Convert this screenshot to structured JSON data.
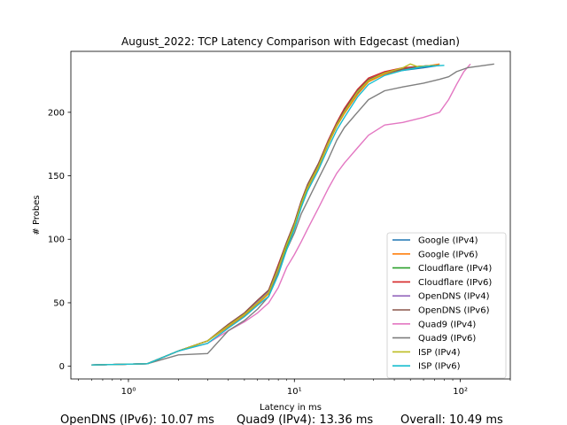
{
  "chart_data": {
    "type": "line",
    "title": "August_2022: TCP Latency Comparison with Edgecast (median)",
    "xlabel": "Latency in ms",
    "ylabel": "# Probes",
    "xscale": "log",
    "xlim": [
      0.45,
      200
    ],
    "ylim": [
      -10,
      248
    ],
    "x_ticks": [
      1,
      10,
      100
    ],
    "x_tick_labels": [
      "10⁰",
      "10¹",
      "10²"
    ],
    "y_ticks": [
      0,
      50,
      100,
      150,
      200
    ],
    "y_tick_labels": [
      "0",
      "50",
      "100",
      "150",
      "200"
    ],
    "grid": false,
    "legend_position": "lower right",
    "series": [
      {
        "name": "Google (IPv4)",
        "color": "#1f77b4",
        "x": [
          0.6,
          1.3,
          2,
          3,
          4,
          5,
          6,
          7,
          8,
          9,
          10,
          11,
          12,
          14,
          16,
          18,
          20,
          24,
          28,
          35,
          45,
          60,
          75
        ],
        "y": [
          1,
          2,
          12,
          20,
          32,
          40,
          50,
          58,
          75,
          95,
          110,
          128,
          140,
          158,
          175,
          190,
          200,
          215,
          225,
          230,
          233,
          235,
          237
        ]
      },
      {
        "name": "Google (IPv6)",
        "color": "#ff7f0e",
        "x": [
          0.62,
          1.3,
          2,
          3,
          4,
          5,
          6,
          7,
          8,
          9,
          10,
          11,
          12,
          14,
          16,
          18,
          20,
          24,
          28,
          35,
          45,
          60,
          75
        ],
        "y": [
          1,
          2,
          12,
          20,
          31,
          40,
          49,
          57,
          74,
          94,
          110,
          127,
          140,
          157,
          175,
          189,
          199,
          214,
          224,
          230,
          234,
          236,
          238
        ]
      },
      {
        "name": "Cloudflare (IPv4)",
        "color": "#2ca02c",
        "x": [
          0.6,
          1.3,
          2,
          3,
          4,
          5,
          6,
          7,
          8,
          9,
          10,
          11,
          12,
          14,
          16,
          18,
          20,
          24,
          28,
          35,
          45,
          55,
          70
        ],
        "y": [
          1,
          2,
          12,
          20,
          32,
          41,
          50,
          58,
          76,
          95,
          111,
          128,
          141,
          158,
          176,
          190,
          200,
          216,
          225,
          231,
          234,
          236,
          237
        ]
      },
      {
        "name": "Cloudflare (IPv6)",
        "color": "#d62728",
        "x": [
          0.6,
          1.3,
          2,
          3,
          4,
          5,
          6,
          7,
          8,
          9,
          10,
          11,
          12,
          14,
          16,
          18,
          20,
          24,
          28,
          35,
          45,
          55,
          70
        ],
        "y": [
          1,
          2,
          12,
          20,
          33,
          42,
          52,
          60,
          80,
          98,
          113,
          130,
          143,
          160,
          178,
          192,
          203,
          218,
          227,
          232,
          235,
          236,
          237
        ]
      },
      {
        "name": "OpenDNS (IPv4)",
        "color": "#9467bd",
        "x": [
          0.6,
          1.3,
          2,
          3,
          4,
          5,
          6,
          7,
          8,
          9,
          10,
          11,
          12,
          14,
          16,
          18,
          20,
          24,
          28,
          35,
          45,
          55,
          70
        ],
        "y": [
          1,
          2,
          12,
          20,
          32,
          41,
          51,
          59,
          78,
          97,
          112,
          129,
          142,
          159,
          177,
          191,
          201,
          217,
          226,
          231,
          234,
          236,
          237
        ]
      },
      {
        "name": "OpenDNS (IPv6)",
        "color": "#8c564b",
        "x": [
          0.6,
          1.3,
          2,
          3,
          4,
          5,
          6,
          7,
          8,
          9,
          10,
          11,
          12,
          14,
          16,
          18,
          20,
          24,
          28,
          35,
          45,
          55,
          70
        ],
        "y": [
          1,
          2,
          12,
          20,
          33,
          42,
          52,
          60,
          79,
          98,
          113,
          130,
          143,
          160,
          177,
          191,
          202,
          217,
          226,
          231,
          234,
          236,
          237
        ]
      },
      {
        "name": "Quad9 (IPv4)",
        "color": "#e377c2",
        "x": [
          0.6,
          1.3,
          2,
          3,
          4,
          5,
          6,
          7,
          8,
          9,
          10,
          11,
          12,
          14,
          16,
          18,
          20,
          24,
          28,
          35,
          45,
          60,
          75,
          85,
          95,
          105,
          115
        ],
        "y": [
          1,
          2,
          12,
          18,
          28,
          35,
          42,
          50,
          62,
          78,
          88,
          98,
          108,
          125,
          140,
          152,
          160,
          172,
          182,
          190,
          192,
          196,
          200,
          210,
          222,
          232,
          238
        ]
      },
      {
        "name": "Quad9 (IPv6)",
        "color": "#7f7f7f",
        "x": [
          0.6,
          1.3,
          2,
          3,
          4,
          5,
          6,
          7,
          8,
          9,
          10,
          11,
          12,
          14,
          16,
          18,
          20,
          24,
          28,
          35,
          45,
          60,
          75,
          85,
          95,
          110,
          160
        ],
        "y": [
          1,
          2,
          9,
          10,
          28,
          36,
          45,
          55,
          75,
          92,
          105,
          120,
          130,
          148,
          163,
          178,
          188,
          200,
          210,
          217,
          220,
          223,
          226,
          228,
          232,
          235,
          238
        ]
      },
      {
        "name": "ISP (IPv4)",
        "color": "#bcbd22",
        "x": [
          0.6,
          1.3,
          2,
          3,
          4,
          5,
          6,
          7,
          8,
          9,
          10,
          11,
          12,
          14,
          16,
          18,
          20,
          24,
          28,
          35,
          45,
          50,
          55,
          70
        ],
        "y": [
          1,
          2,
          12,
          20,
          32,
          41,
          50,
          58,
          77,
          96,
          111,
          128,
          141,
          158,
          176,
          190,
          200,
          216,
          225,
          231,
          235,
          238,
          236,
          237
        ]
      },
      {
        "name": "ISP (IPv6)",
        "color": "#17becf",
        "x": [
          0.6,
          1.3,
          2,
          3,
          4,
          5,
          6,
          7,
          8,
          9,
          10,
          11,
          12,
          14,
          16,
          18,
          20,
          24,
          28,
          35,
          45,
          60,
          80
        ],
        "y": [
          1,
          2,
          12,
          18,
          30,
          39,
          48,
          55,
          72,
          92,
          108,
          125,
          138,
          155,
          172,
          186,
          196,
          212,
          222,
          229,
          233,
          236,
          237
        ]
      }
    ]
  },
  "footer": {
    "opendns_ipv6": "OpenDNS (IPv6): 10.07 ms",
    "quad9_ipv4": "Quad9 (IPv4): 13.36 ms",
    "overall": "Overall: 10.49 ms"
  }
}
